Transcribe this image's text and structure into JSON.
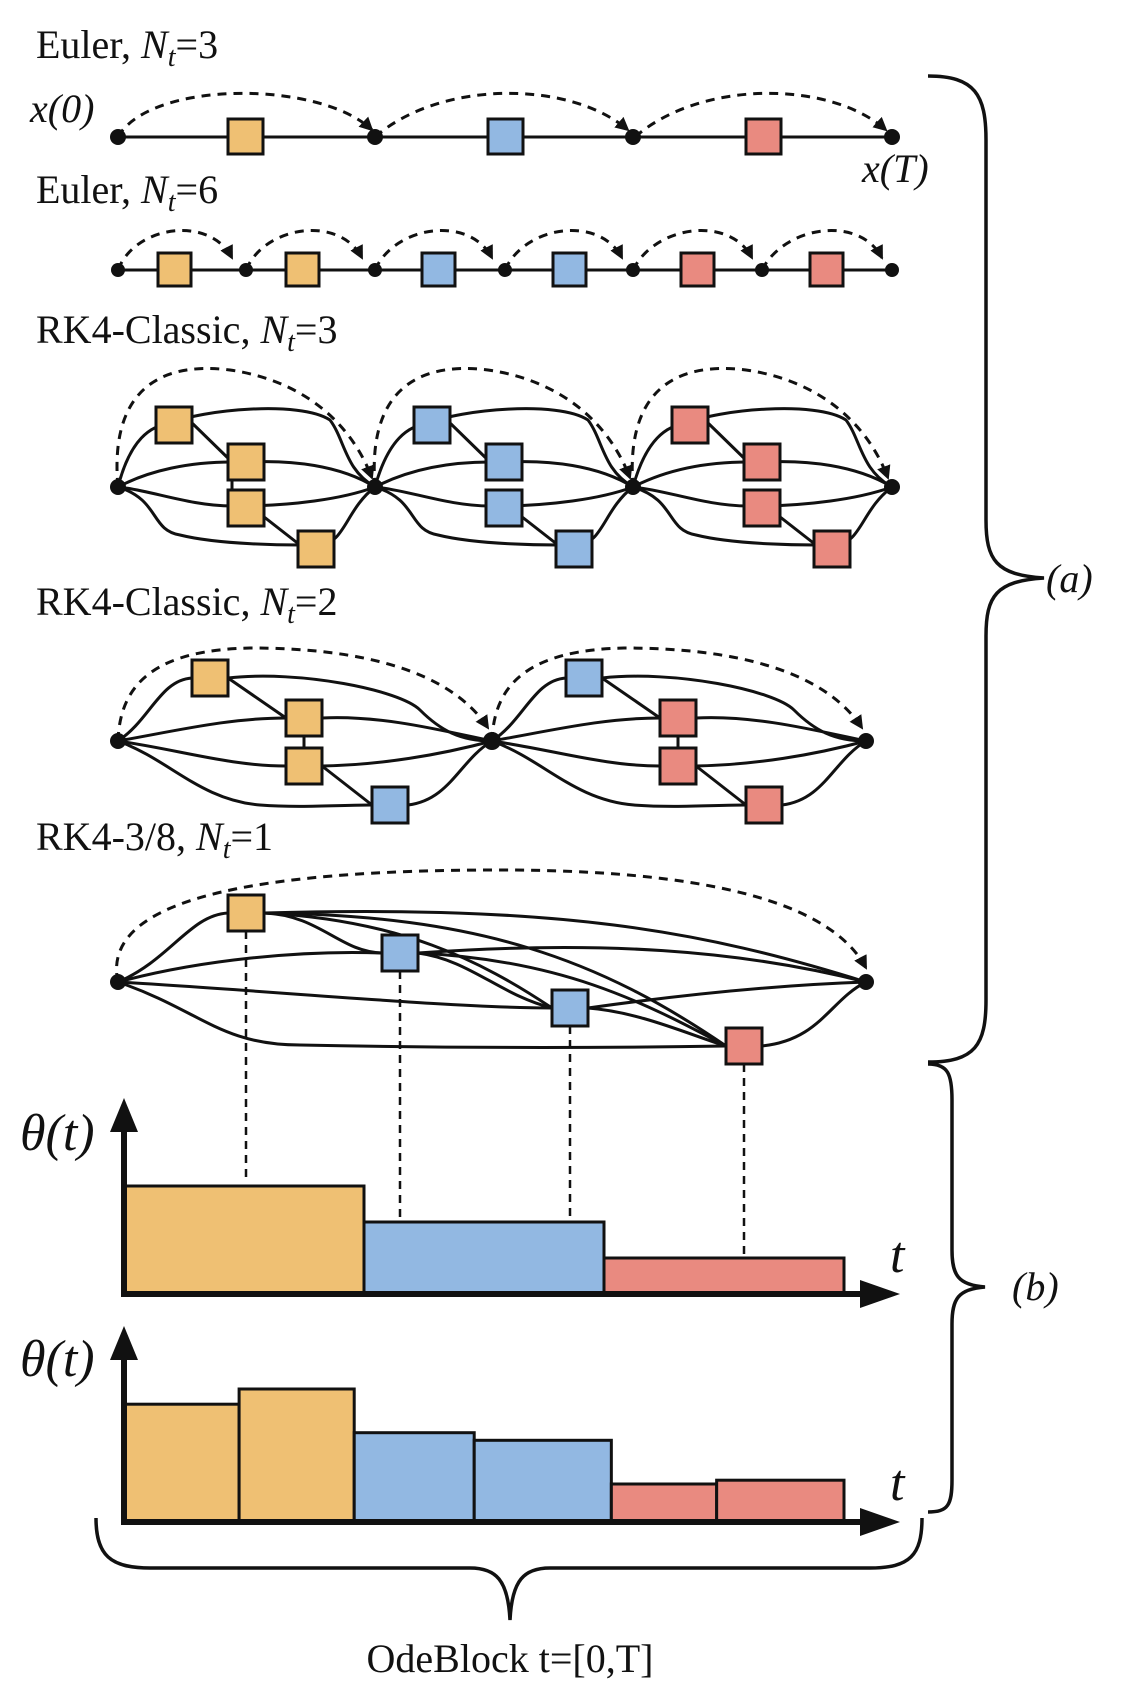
{
  "colors": {
    "orange": "#efc073",
    "blue": "#92b8e2",
    "red": "#e98a80"
  },
  "labels": {
    "start": "x(0)",
    "end": "x(T)",
    "brace_a": "(a)",
    "brace_b": "(b)",
    "bottom": "OdeBlock t=[0,T]",
    "theta1": "θ(t)",
    "theta2": "θ(t)",
    "t1": "t",
    "t2": "t"
  },
  "rows": [
    {
      "method": "Euler",
      "nt": "3"
    },
    {
      "method": "Euler",
      "nt": "6"
    },
    {
      "method": "RK4-Classic",
      "nt": "3"
    },
    {
      "method": "RK4-Classic",
      "nt": "2"
    },
    {
      "method": "RK4-3/8",
      "nt": "1"
    }
  ],
  "chart_data": [
    {
      "type": "bar",
      "ylabel": "θ(t)",
      "xlabel": "t",
      "values": [
        3,
        2,
        1
      ],
      "colors": [
        "orange",
        "blue",
        "red"
      ]
    },
    {
      "type": "bar",
      "ylabel": "θ(t)",
      "xlabel": "t",
      "values": [
        3.1,
        3.5,
        2.35,
        2.15,
        1.0,
        1.1
      ],
      "colors": [
        "orange",
        "orange",
        "blue",
        "blue",
        "red",
        "red"
      ]
    }
  ]
}
